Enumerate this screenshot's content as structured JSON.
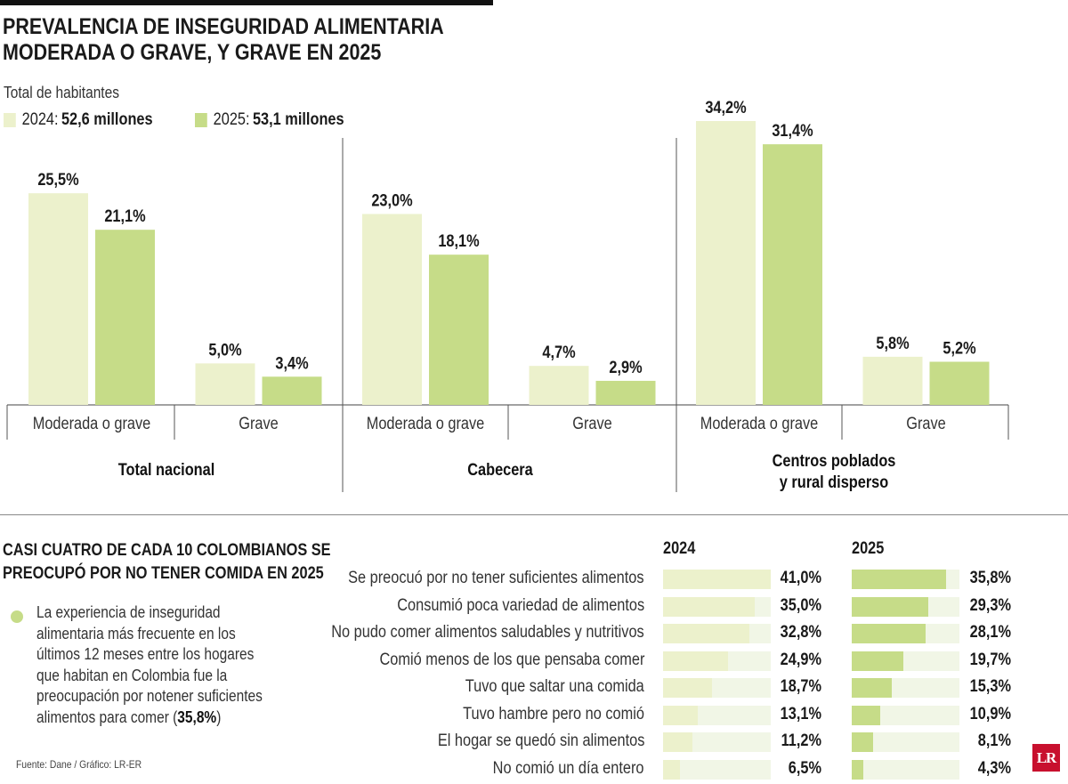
{
  "title_line1": "PREVALENCIA DE INSEGURIDAD ALIMENTARIA",
  "title_line2": "MODERADA O GRAVE, Y GRAVE EN 2025",
  "total_label": "Total de habitantes",
  "legend": [
    {
      "year": "2024:",
      "value": "52,6 millones",
      "color": "#ecf1cc"
    },
    {
      "year": "2025:",
      "value": "53,1 millones",
      "color": "#c6dc88"
    }
  ],
  "colors": {
    "y2024": "#ecf1cc",
    "y2025": "#c6dc88",
    "track": "#f1f6e6"
  },
  "chart_data": [
    {
      "type": "bar",
      "title": "PREVALENCIA DE INSEGURIDAD ALIMENTARIA MODERADA O GRAVE, Y GRAVE EN 2025",
      "ylim": [
        0,
        34.2
      ],
      "groups": [
        {
          "name": "Total nacional",
          "categories": [
            "Moderada o grave",
            "Grave"
          ],
          "series": [
            {
              "name": "2024",
              "values": [
                25.5,
                5.0
              ],
              "labels": [
                "25,5%",
                "5,0%"
              ]
            },
            {
              "name": "2025",
              "values": [
                21.1,
                3.4
              ],
              "labels": [
                "21,1%",
                "3,4%"
              ]
            }
          ]
        },
        {
          "name": "Cabecera",
          "categories": [
            "Moderada o grave",
            "Grave"
          ],
          "series": [
            {
              "name": "2024",
              "values": [
                23.0,
                4.7
              ],
              "labels": [
                "23,0%",
                "4,7%"
              ]
            },
            {
              "name": "2025",
              "values": [
                18.1,
                2.9
              ],
              "labels": [
                "18,1%",
                "2,9%"
              ]
            }
          ]
        },
        {
          "name": "Centros poblados y rural disperso",
          "name_lines": [
            "Centros poblados",
            "y rural disperso"
          ],
          "categories": [
            "Moderada o grave",
            "Grave"
          ],
          "series": [
            {
              "name": "2024",
              "values": [
                34.2,
                5.8
              ],
              "labels": [
                "34,2%",
                "5,8%"
              ]
            },
            {
              "name": "2025",
              "values": [
                31.4,
                5.2
              ],
              "labels": [
                "31,4%",
                "5,2%"
              ]
            }
          ]
        }
      ]
    },
    {
      "type": "bar",
      "orientation": "horizontal",
      "title": "CASI CUATRO DE CADA 10 COLOMBIANOS SE PREOCUPÓ POR NO TENER COMIDA EN 2025",
      "xlim": [
        0,
        41.0
      ],
      "categories": [
        "Se preocuó por no tener suficientes alimentos",
        "Consumió poca variedad de alimentos",
        "No pudo comer alimentos saludables y nutritivos",
        "Comió menos de los que pensaba comer",
        "Tuvo que saltar una comida",
        "Tuvo hambre pero no comió",
        "El hogar se quedó sin alimentos",
        "No comió un día entero"
      ],
      "series": [
        {
          "name": "2024",
          "values": [
            41.0,
            35.0,
            32.8,
            24.9,
            18.7,
            13.1,
            11.2,
            6.5
          ],
          "labels": [
            "41,0%",
            "35,0%",
            "32,8%",
            "24,9%",
            "18,7%",
            "13,1%",
            "11,2%",
            "6,5%"
          ]
        },
        {
          "name": "2025",
          "values": [
            35.8,
            29.3,
            28.1,
            19.7,
            15.3,
            10.9,
            8.1,
            4.3
          ],
          "labels": [
            "35,8%",
            "29,3%",
            "28,1%",
            "19,7%",
            "15,3%",
            "10,9%",
            "8,1%",
            "4,3%"
          ]
        }
      ]
    }
  ],
  "subtitle_line1": "CASI CUATRO DE CADA 10 COLOMBIANOS SE",
  "subtitle_line2": "PREOCUPÓ POR NO TENER COMIDA EN 2025",
  "note_text": "La experiencia de inseguridad alimentaria más frecuente en los últimos 12 meses entre los hogares que habitan en Colombia fue la preocupación por notener suficientes alimentos para comer (",
  "note_highlight": "35,8%",
  "note_close": ")",
  "source": "Fuente: Dane / Gráfico: LR-ER",
  "logo_text": "LR"
}
